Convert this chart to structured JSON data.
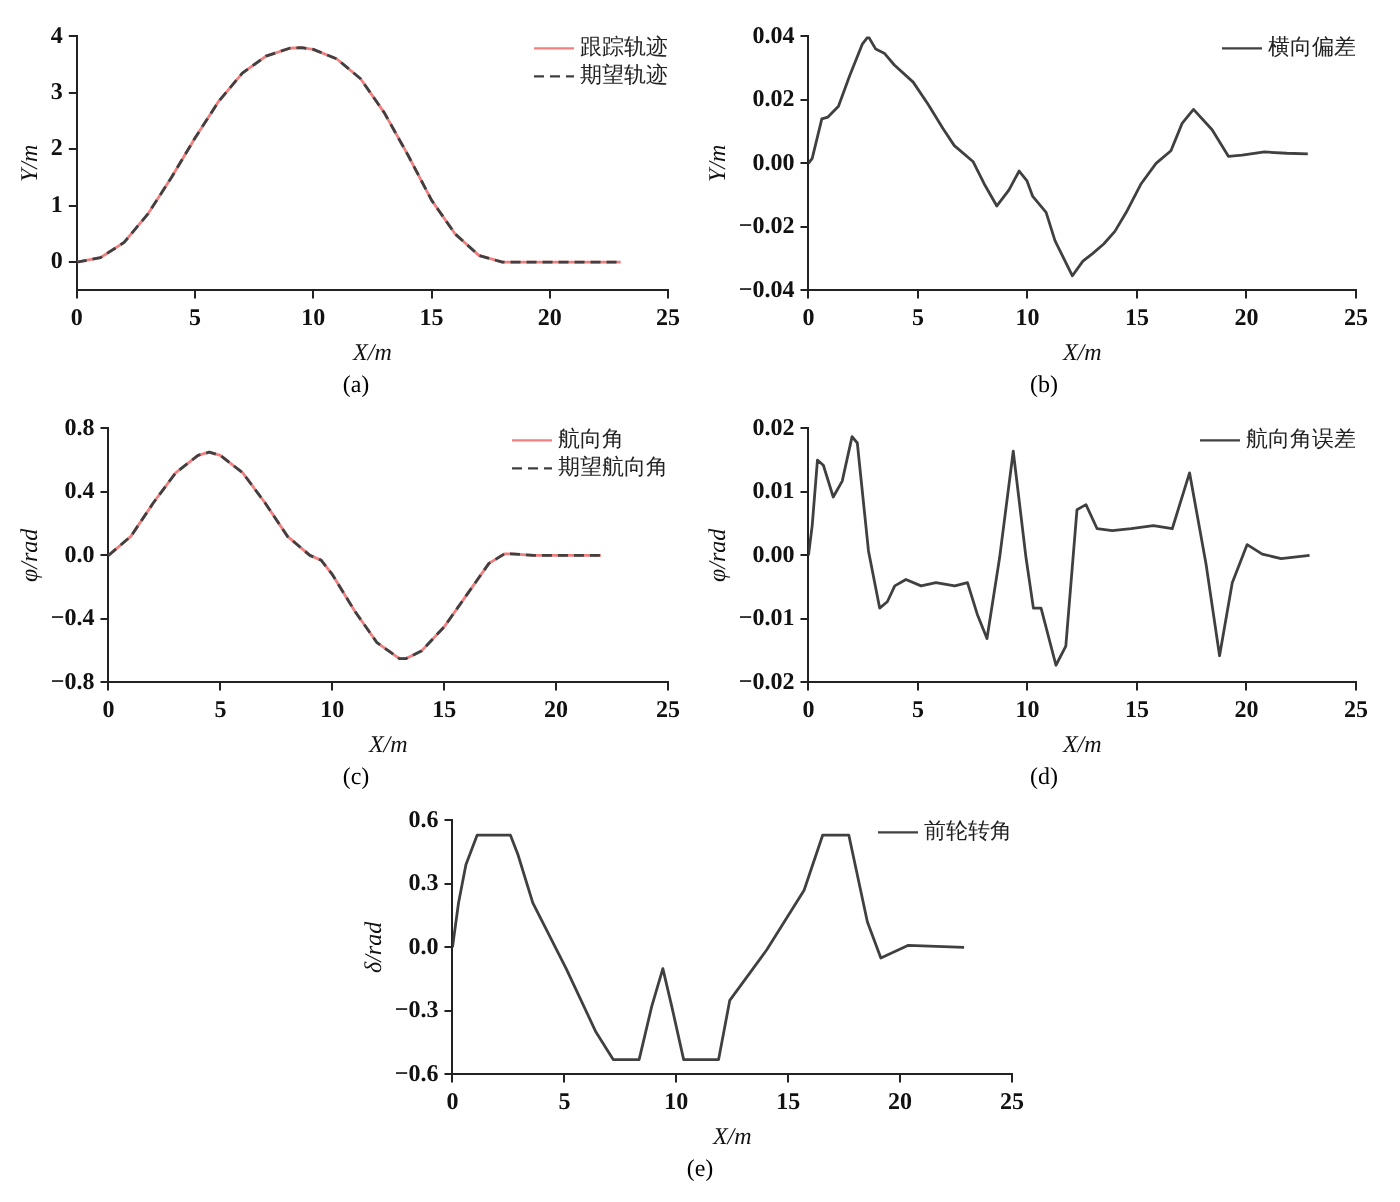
{
  "chart_data": [
    {
      "type": "line",
      "xlabel": "X/m",
      "ylabel": "Y/m",
      "annotations": [
        "(a)"
      ],
      "xlim": [
        0,
        25
      ],
      "xticks": [
        0,
        5,
        10,
        15,
        20,
        25
      ],
      "ylim": [
        -0.5,
        4
      ],
      "yticks": [
        0,
        1,
        2,
        3,
        4
      ],
      "grid": false,
      "legend": "top right",
      "x": [
        0,
        1,
        2,
        3,
        4,
        5,
        6,
        7,
        8,
        9,
        9.5,
        10,
        11,
        12,
        13,
        14,
        15,
        16,
        17,
        18,
        19,
        20,
        21,
        22,
        23
      ],
      "series": [
        {
          "name": "跟踪轨迹",
          "color": "#f08080",
          "line_style": "solid",
          "values": [
            0,
            0.08,
            0.35,
            0.85,
            1.5,
            2.2,
            2.85,
            3.35,
            3.65,
            3.79,
            3.8,
            3.77,
            3.6,
            3.25,
            2.65,
            1.9,
            1.1,
            0.5,
            0.12,
            0,
            0,
            0,
            0,
            0,
            0
          ]
        },
        {
          "name": "期望轨迹",
          "color": "#404040",
          "line_style": "dashed",
          "values": [
            0,
            0.08,
            0.35,
            0.85,
            1.5,
            2.2,
            2.85,
            3.35,
            3.65,
            3.79,
            3.8,
            3.77,
            3.6,
            3.25,
            2.65,
            1.9,
            1.1,
            0.5,
            0.12,
            0,
            0,
            0,
            0,
            0,
            0
          ]
        }
      ]
    },
    {
      "type": "line",
      "xlabel": "X/m",
      "ylabel": "Y/m",
      "annotations": [
        "(b)"
      ],
      "xlim": [
        0,
        25
      ],
      "xticks": [
        0,
        5,
        10,
        15,
        20,
        25
      ],
      "ylim": [
        -0.04,
        0.04
      ],
      "yticks": [
        {
          "value": -0.04,
          "label": "−0.04"
        },
        {
          "value": -0.02,
          "label": "−0.02"
        },
        {
          "value": 0,
          "label": "0.00"
        },
        {
          "value": 0.02,
          "label": "0.02"
        },
        {
          "value": 0.04,
          "label": "0.04"
        }
      ],
      "grid": false,
      "legend": "top right",
      "x": [
        0,
        0.17,
        0.61,
        0.89,
        1.37,
        1.88,
        2.46,
        2.73,
        3.07,
        3.48,
        3.92,
        4.78,
        5.46,
        6.14,
        6.66,
        7.51,
        8.02,
        8.6,
        9.15,
        9.62,
        9.97,
        10.24,
        10.85,
        11.26,
        12.05,
        12.53,
        12.97,
        13.48,
        13.99,
        14.51,
        15.19,
        15.87,
        16.55,
        17.06,
        17.58,
        18.43,
        19.18,
        19.8,
        20.82,
        21.84,
        22.8
      ],
      "series": [
        {
          "name": "横向偏差",
          "color": "#404040",
          "line_style": "solid",
          "values": [
            0,
            0.0016,
            0.014,
            0.0146,
            0.018,
            0.0276,
            0.0376,
            0.04,
            0.036,
            0.0346,
            0.031,
            0.0256,
            0.0186,
            0.011,
            0.0056,
            0.0006,
            -0.0064,
            -0.0134,
            -0.0084,
            -0.0024,
            -0.0054,
            -0.0104,
            -0.0154,
            -0.0244,
            -0.0354,
            -0.0308,
            -0.0284,
            -0.0254,
            -0.0214,
            -0.0154,
            -0.0064,
            0,
            0.004,
            0.0126,
            0.017,
            0.0106,
            0.0022,
            0.0026,
            0.0036,
            0.0032,
            0.003
          ]
        }
      ]
    },
    {
      "type": "line",
      "xlabel": "X/m",
      "ylabel": "φ/rad",
      "annotations": [
        "(c)"
      ],
      "xlim": [
        0,
        25
      ],
      "xticks": [
        0,
        5,
        10,
        15,
        20,
        25
      ],
      "ylim": [
        -0.8,
        0.8
      ],
      "yticks": [
        {
          "value": -0.8,
          "label": "−0.8"
        },
        {
          "value": -0.4,
          "label": "−0.4"
        },
        {
          "value": 0,
          "label": "0.0"
        },
        0.4,
        0.8
      ],
      "grid": false,
      "legend": "top right",
      "x": [
        0,
        1,
        2,
        3,
        4,
        4.5,
        5,
        6,
        7,
        8,
        9,
        9.5,
        10,
        11,
        12,
        13,
        13.3,
        14,
        15,
        16,
        17,
        17.7,
        18,
        19,
        22
      ],
      "series": [
        {
          "name": "航向角",
          "color": "#f08080",
          "line_style": "solid",
          "values": [
            0,
            0.12,
            0.33,
            0.52,
            0.63,
            0.65,
            0.63,
            0.52,
            0.33,
            0.12,
            0,
            -0.03,
            -0.12,
            -0.35,
            -0.55,
            -0.65,
            -0.65,
            -0.6,
            -0.45,
            -0.25,
            -0.05,
            0.01,
            0.01,
            0,
            0
          ]
        },
        {
          "name": "期望航向角",
          "color": "#404040",
          "line_style": "dashed",
          "values": [
            0,
            0.12,
            0.33,
            0.52,
            0.63,
            0.65,
            0.63,
            0.52,
            0.33,
            0.12,
            0,
            -0.03,
            -0.12,
            -0.35,
            -0.55,
            -0.65,
            -0.65,
            -0.6,
            -0.45,
            -0.25,
            -0.05,
            0.01,
            0.01,
            0,
            0
          ]
        }
      ]
    },
    {
      "type": "line",
      "xlabel": "X/m",
      "ylabel": "φ/rad",
      "annotations": [
        "(d)"
      ],
      "xlim": [
        0,
        25
      ],
      "xticks": [
        0,
        5,
        10,
        15,
        20,
        25
      ],
      "ylim": [
        -0.02,
        0.02
      ],
      "yticks": [
        {
          "value": -0.02,
          "label": "−0.02"
        },
        {
          "value": -0.01,
          "label": "−0.01"
        },
        {
          "value": 0,
          "label": "0.00"
        },
        0.01,
        0.02
      ],
      "grid": false,
      "legend": "top right",
      "x": [
        0,
        0.17,
        0.41,
        0.68,
        1.13,
        1.54,
        1.99,
        2.23,
        2.74,
        3.25,
        3.6,
        3.94,
        4.45,
        5.14,
        5.82,
        6.68,
        7.26,
        7.71,
        8.15,
        8.73,
        9.35,
        9.93,
        10.27,
        10.62,
        11.3,
        11.75,
        12.26,
        12.67,
        13.18,
        13.87,
        14.73,
        15.75,
        16.61,
        17.4,
        18.15,
        18.77,
        19.35,
        20.03,
        20.72,
        21.58,
        22.88
      ],
      "series": [
        {
          "name": "航向角误差",
          "color": "#404040",
          "line_style": "solid",
          "values": [
            0,
            0.0047,
            0.015,
            0.0142,
            0.0092,
            0.0117,
            0.0187,
            0.0177,
            0.0007,
            -0.0083,
            -0.0073,
            -0.0048,
            -0.0038,
            -0.0048,
            -0.0043,
            -0.0048,
            -0.0043,
            -0.0093,
            -0.0131,
            -0.0003,
            0.0164,
            -0.0003,
            -0.0083,
            -0.0083,
            -0.0173,
            -0.0143,
            0.0072,
            0.008,
            0.0042,
            0.0039,
            0.0042,
            0.0047,
            0.0042,
            0.013,
            -0.0013,
            -0.0158,
            -0.0043,
            0.0017,
            0.0002,
            -0.0005,
            0
          ]
        }
      ]
    },
    {
      "type": "line",
      "xlabel": "X/m",
      "ylabel": "δ/rad",
      "annotations": [
        "(e)"
      ],
      "xlim": [
        0,
        25
      ],
      "xticks": [
        0,
        5,
        10,
        15,
        20,
        25
      ],
      "ylim": [
        -0.6,
        0.6
      ],
      "yticks": [
        {
          "value": -0.6,
          "label": "−0.6"
        },
        {
          "value": -0.3,
          "label": "−0.3"
        },
        {
          "value": 0,
          "label": "0.0"
        },
        0.3,
        0.6
      ],
      "grid": false,
      "legend": "top right",
      "x": [
        0,
        0.27,
        0.6,
        1.1,
        2.59,
        2.92,
        3.59,
        5.08,
        6.41,
        7.18,
        8.34,
        8.9,
        9.4,
        9.8,
        10.33,
        11.89,
        12.39,
        14.05,
        15.71,
        16.54,
        17.71,
        18.54,
        19.14,
        20.37,
        22.86
      ],
      "series": [
        {
          "name": "前轮转角",
          "color": "#404040",
          "line_style": "solid",
          "values": [
            0,
            0.21,
            0.39,
            0.53,
            0.53,
            0.44,
            0.21,
            -0.1,
            -0.4,
            -0.53,
            -0.53,
            -0.28,
            -0.1,
            -0.28,
            -0.53,
            -0.53,
            -0.25,
            -0.01,
            0.27,
            0.53,
            0.53,
            0.12,
            -0.05,
            0.01,
            0
          ]
        }
      ]
    }
  ]
}
